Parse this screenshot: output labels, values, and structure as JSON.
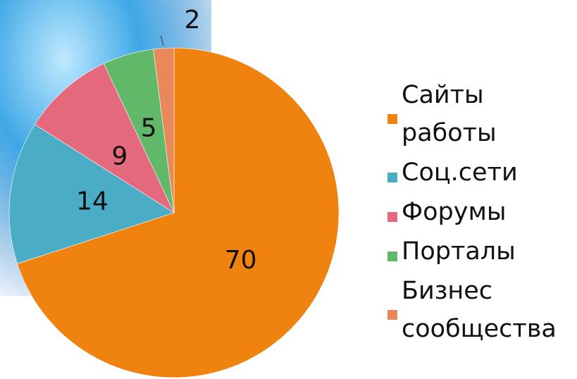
{
  "chart_data": {
    "type": "pie",
    "categories": [
      "Сайты работы",
      "Соц.сети",
      "Форумы",
      "Порталы",
      "Бизнес сообщества"
    ],
    "values": [
      70,
      14,
      9,
      5,
      2
    ],
    "colors": [
      "#f0830f",
      "#4bacc6",
      "#e4697d",
      "#62b869",
      "#e8895c"
    ],
    "legend": "right"
  }
}
